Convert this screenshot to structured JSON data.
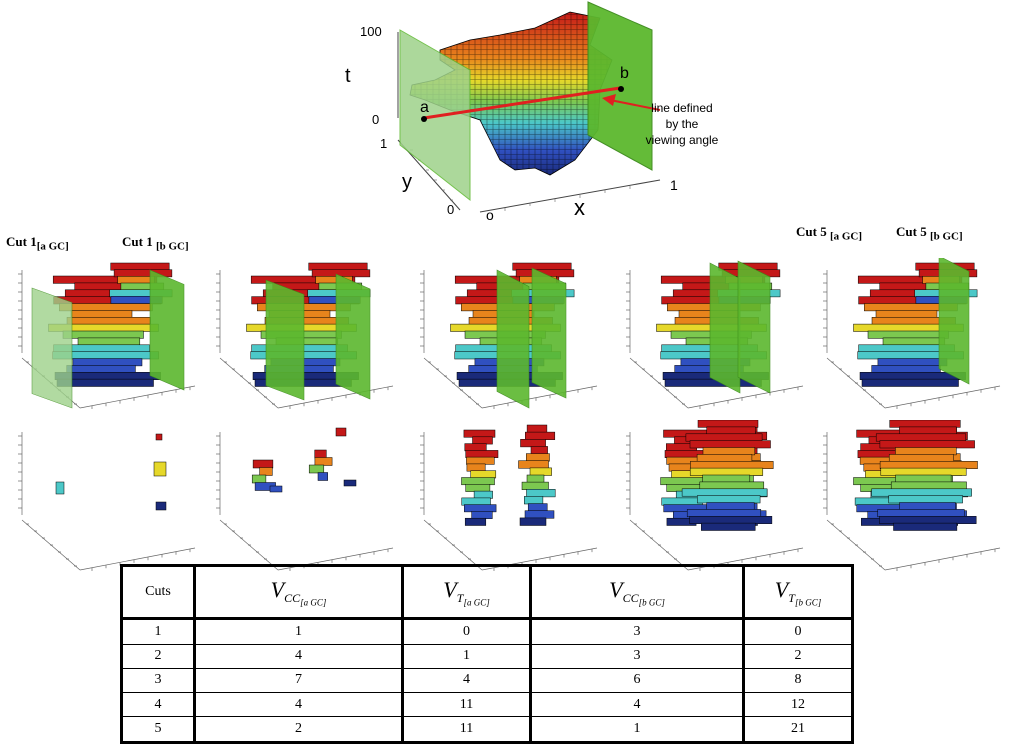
{
  "top_figure": {
    "axis_t": "t",
    "axis_y": "y",
    "axis_x": "x",
    "tick_100": "100",
    "tick_t0": "0",
    "tick_y1": "1",
    "tick_y0": "0",
    "tick_x0": "o",
    "tick_x1": "1",
    "point_a": "a",
    "point_b": "b",
    "annotation_line1": "line defined",
    "annotation_line2": "by the",
    "annotation_line3": "viewing angle"
  },
  "cut_labels": {
    "cut1_a": "Cut 1",
    "cut1_a_sub": "[a GC]",
    "cut1_b": "Cut 1",
    "cut1_b_sub": "[b GC]",
    "cut5_a": "Cut 5",
    "cut5_a_sub": "[a GC]",
    "cut5_b": "Cut 5",
    "cut5_b_sub": "[b GC]"
  },
  "table": {
    "header": {
      "cuts": "Cuts",
      "v": "V",
      "cc": "CC",
      "t": "T",
      "a_gc": "[a GC]",
      "b_gc": "[b GC]"
    },
    "rows": [
      {
        "cut": "1",
        "vcc_a": "1",
        "vt_a": "0",
        "vcc_b": "3",
        "vt_b": "0"
      },
      {
        "cut": "2",
        "vcc_a": "4",
        "vt_a": "1",
        "vcc_b": "3",
        "vt_b": "2"
      },
      {
        "cut": "3",
        "vcc_a": "7",
        "vt_a": "4",
        "vcc_b": "6",
        "vt_b": "8"
      },
      {
        "cut": "4",
        "vcc_a": "4",
        "vt_a": "11",
        "vcc_b": "4",
        "vt_b": "12"
      },
      {
        "cut": "5",
        "vcc_a": "2",
        "vt_a": "11",
        "vcc_b": "1",
        "vt_b": "21"
      }
    ]
  },
  "colors": {
    "plane_green": "#5cb82e",
    "plane_green_light": "#9ed28a",
    "line_red": "#e02020",
    "voxel_red": "#c41818",
    "voxel_orange": "#e8841c",
    "voxel_yellow": "#e6d82a",
    "voxel_green": "#7cc850",
    "voxel_cyan": "#4cc8c8",
    "voxel_blue": "#3050c0",
    "voxel_navy": "#1a2a7a"
  }
}
